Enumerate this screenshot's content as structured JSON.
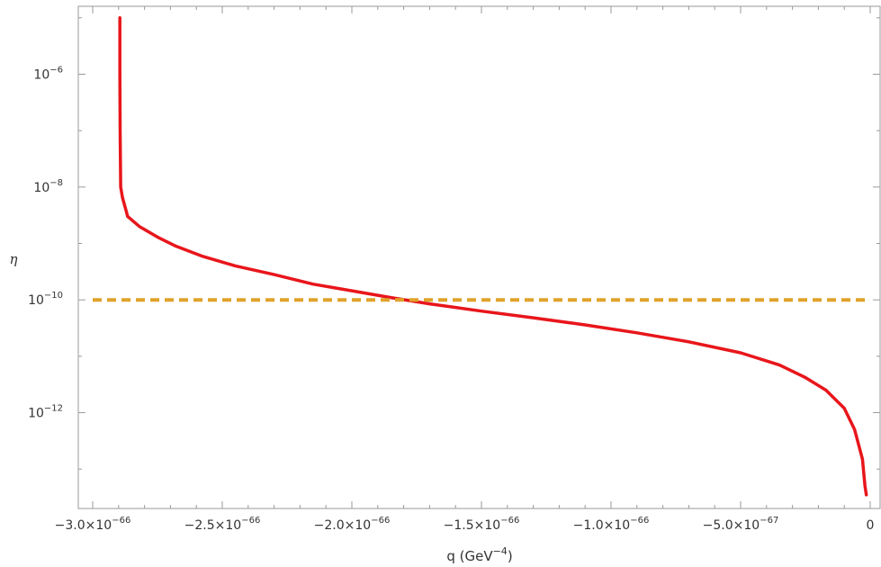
{
  "chart_data": {
    "type": "line",
    "title": "",
    "xlabel": {
      "base": "q (GeV",
      "sup": "−4",
      "suffix": ")"
    },
    "ylabel": "η",
    "xlim": [
      -3e-66,
      0
    ],
    "ylim": [
      2e-14,
      1.6e-05
    ],
    "yscale": "log",
    "grid": false,
    "xticks": [
      {
        "value": -3e-66,
        "mant": "−3.0",
        "exp": "−66"
      },
      {
        "value": -2.5e-66,
        "mant": "−2.5",
        "exp": "−66"
      },
      {
        "value": -2e-66,
        "mant": "−2.0",
        "exp": "−66"
      },
      {
        "value": -1.5e-66,
        "mant": "−1.5",
        "exp": "−66"
      },
      {
        "value": -1e-66,
        "mant": "−1.0",
        "exp": "−66"
      },
      {
        "value": -5e-67,
        "mant": "−5.0",
        "exp": "−67"
      },
      {
        "value": 0,
        "mant": "0",
        "exp": ""
      }
    ],
    "yticks": [
      {
        "value": 1e-06,
        "exp": "−6"
      },
      {
        "value": 1e-08,
        "exp": "−8"
      },
      {
        "value": 1e-10,
        "exp": "−10"
      },
      {
        "value": 1e-12,
        "exp": "−12"
      }
    ],
    "series": [
      {
        "color": "#e8161b",
        "style": "solid",
        "points": [
          [
            -2.895e-66,
            1e-05
          ],
          [
            -2.895e-66,
            1e-06
          ],
          [
            -2.894e-66,
            1e-07
          ],
          [
            -2.892e-66,
            1e-08
          ],
          [
            -2.885e-66,
            6.5e-09
          ],
          [
            -2.865e-66,
            3e-09
          ],
          [
            -2.82e-66,
            2e-09
          ],
          [
            -2.75e-66,
            1.3e-09
          ],
          [
            -2.68e-66,
            9e-10
          ],
          [
            -2.58e-66,
            6e-10
          ],
          [
            -2.45e-66,
            4e-10
          ],
          [
            -2.3e-66,
            2.8e-10
          ],
          [
            -2.15e-66,
            1.9e-10
          ],
          [
            -2e-66,
            1.45e-10
          ],
          [
            -1.85e-66,
            1.1e-10
          ],
          [
            -1.7e-66,
            8.5e-11
          ],
          [
            -1.5e-66,
            6.3e-11
          ],
          [
            -1.3e-66,
            4.8e-11
          ],
          [
            -1.1e-66,
            3.6e-11
          ],
          [
            -9e-67,
            2.6e-11
          ],
          [
            -7e-67,
            1.8e-11
          ],
          [
            -5e-67,
            1.15e-11
          ],
          [
            -3.5e-67,
            7e-12
          ],
          [
            -2.5e-67,
            4.2e-12
          ],
          [
            -1.7e-67,
            2.5e-12
          ],
          [
            -1e-67,
            1.2e-12
          ],
          [
            -6e-68,
            5e-13
          ],
          [
            -3e-68,
            1.5e-13
          ],
          [
            -2e-68,
            5e-14
          ],
          [
            -1.5e-68,
            3.5e-14
          ]
        ]
      },
      {
        "color": "#e0a22a",
        "style": "dashed",
        "points": [
          [
            -3e-66,
            1e-10
          ],
          [
            0,
            1e-10
          ]
        ]
      }
    ]
  }
}
